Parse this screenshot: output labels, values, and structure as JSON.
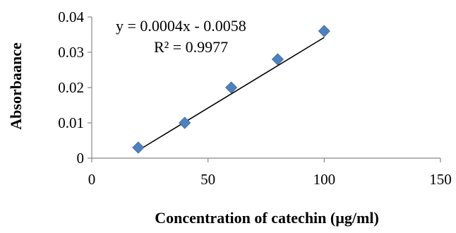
{
  "chart_data": {
    "type": "scatter",
    "title": "",
    "xlabel": "Concentration of catechin (µg/ml)",
    "ylabel": "Absorbaance",
    "xlim": [
      0,
      150
    ],
    "ylim": [
      0,
      0.04
    ],
    "x_ticks": [
      0,
      50,
      100,
      150
    ],
    "y_ticks": [
      0,
      0.01,
      0.02,
      0.03,
      0.04
    ],
    "x_tick_labels": [
      "0",
      "50",
      "100",
      "150"
    ],
    "y_tick_labels": [
      "0",
      "0.01",
      "0.02",
      "0.03",
      "0.04"
    ],
    "grid": false,
    "legend": "none",
    "series": [
      {
        "marker": "diamond",
        "color": "#4F81BD",
        "x": [
          20,
          40,
          60,
          80,
          100
        ],
        "y": [
          0.003,
          0.01,
          0.02,
          0.028,
          0.036
        ]
      }
    ],
    "trendline": {
      "type": "linear",
      "color": "#000000",
      "x_range": [
        20,
        100
      ],
      "slope": 0.0004,
      "intercept": -0.0058
    },
    "annotations": {
      "equation": "y = 0.0004x - 0.0058",
      "r_squared": "R² = 0.9977"
    }
  }
}
